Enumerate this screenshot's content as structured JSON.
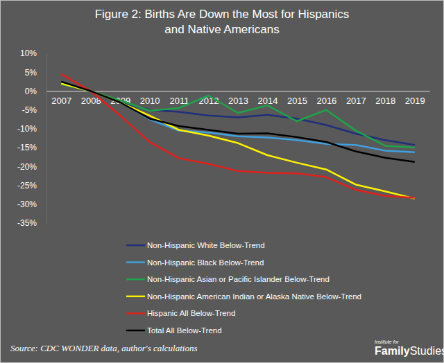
{
  "chart_data": {
    "type": "line",
    "title": [
      "Figure 2: Births Are Down the Most for Hispanics",
      "and Native Americans"
    ],
    "source": "Source: CDC WONDER data, author's calculations",
    "logo": [
      "Institute for",
      "Family",
      "Studies"
    ],
    "categories": [
      "2007",
      "2008",
      "2009",
      "2010",
      "2011",
      "2012",
      "2013",
      "2014",
      "2015",
      "2016",
      "2017",
      "2018",
      "2019"
    ],
    "series": [
      {
        "name": "Non-Hispanic White Below-Trend",
        "color": "#1f2f7a",
        "values": [
          2.5,
          0,
          -3,
          -5,
          -5.5,
          -6.5,
          -7,
          -6.3,
          -7.3,
          -9,
          -11.3,
          -13,
          -14.3
        ]
      },
      {
        "name": "Non-Hispanic Black Below-Trend",
        "color": "#3fa0e0",
        "values": [
          2,
          0,
          -3,
          -7.5,
          -10.5,
          -11,
          -12,
          -12.3,
          -13,
          -14,
          -14.3,
          -15.8,
          -16.2
        ]
      },
      {
        "name": "Non-Hispanic Asian or Pacific Islander Below-Trend",
        "color": "#1fa34a",
        "values": [
          1.8,
          0,
          -2.5,
          -5.2,
          -4.5,
          -1.2,
          -5.8,
          -3.8,
          -8,
          -5,
          -10.5,
          -14.5,
          -15
        ]
      },
      {
        "name": "Non-Hispanic American Indian or Alaska Native Below-Trend",
        "color": "#fff200",
        "values": [
          2,
          0,
          -3,
          -6.5,
          -10.3,
          -11.8,
          -13.8,
          -17,
          -19,
          -20.8,
          -24.8,
          -26.6,
          -28.5
        ]
      },
      {
        "name": "Hispanic All Below-Trend",
        "color": "#e0201c",
        "values": [
          4.5,
          0,
          -6.5,
          -13.5,
          -17.8,
          -19.3,
          -21.2,
          -21.7,
          -21.8,
          -22.8,
          -26.2,
          -27.8,
          -28.3
        ]
      },
      {
        "name": "Total All Below-Trend",
        "color": "#000000",
        "values": [
          2.5,
          0,
          -3,
          -7.3,
          -9.3,
          -10.3,
          -11.3,
          -11.2,
          -12.2,
          -13.5,
          -16,
          -17.7,
          -18.8
        ]
      }
    ],
    "ylim": [
      -35,
      10
    ],
    "yticks": [
      {
        "value": 10,
        "label": "10%"
      },
      {
        "value": 5,
        "label": "5%"
      },
      {
        "value": 0,
        "label": "0%"
      },
      {
        "value": -5,
        "label": "-5%"
      },
      {
        "value": -10,
        "label": "-10%"
      },
      {
        "value": -15,
        "label": "-15%"
      },
      {
        "value": -20,
        "label": "-20%"
      },
      {
        "value": -25,
        "label": "-25%"
      },
      {
        "value": -30,
        "label": "-30%"
      },
      {
        "value": -35,
        "label": "-35%"
      }
    ],
    "grid": false,
    "legend": "bottom"
  }
}
